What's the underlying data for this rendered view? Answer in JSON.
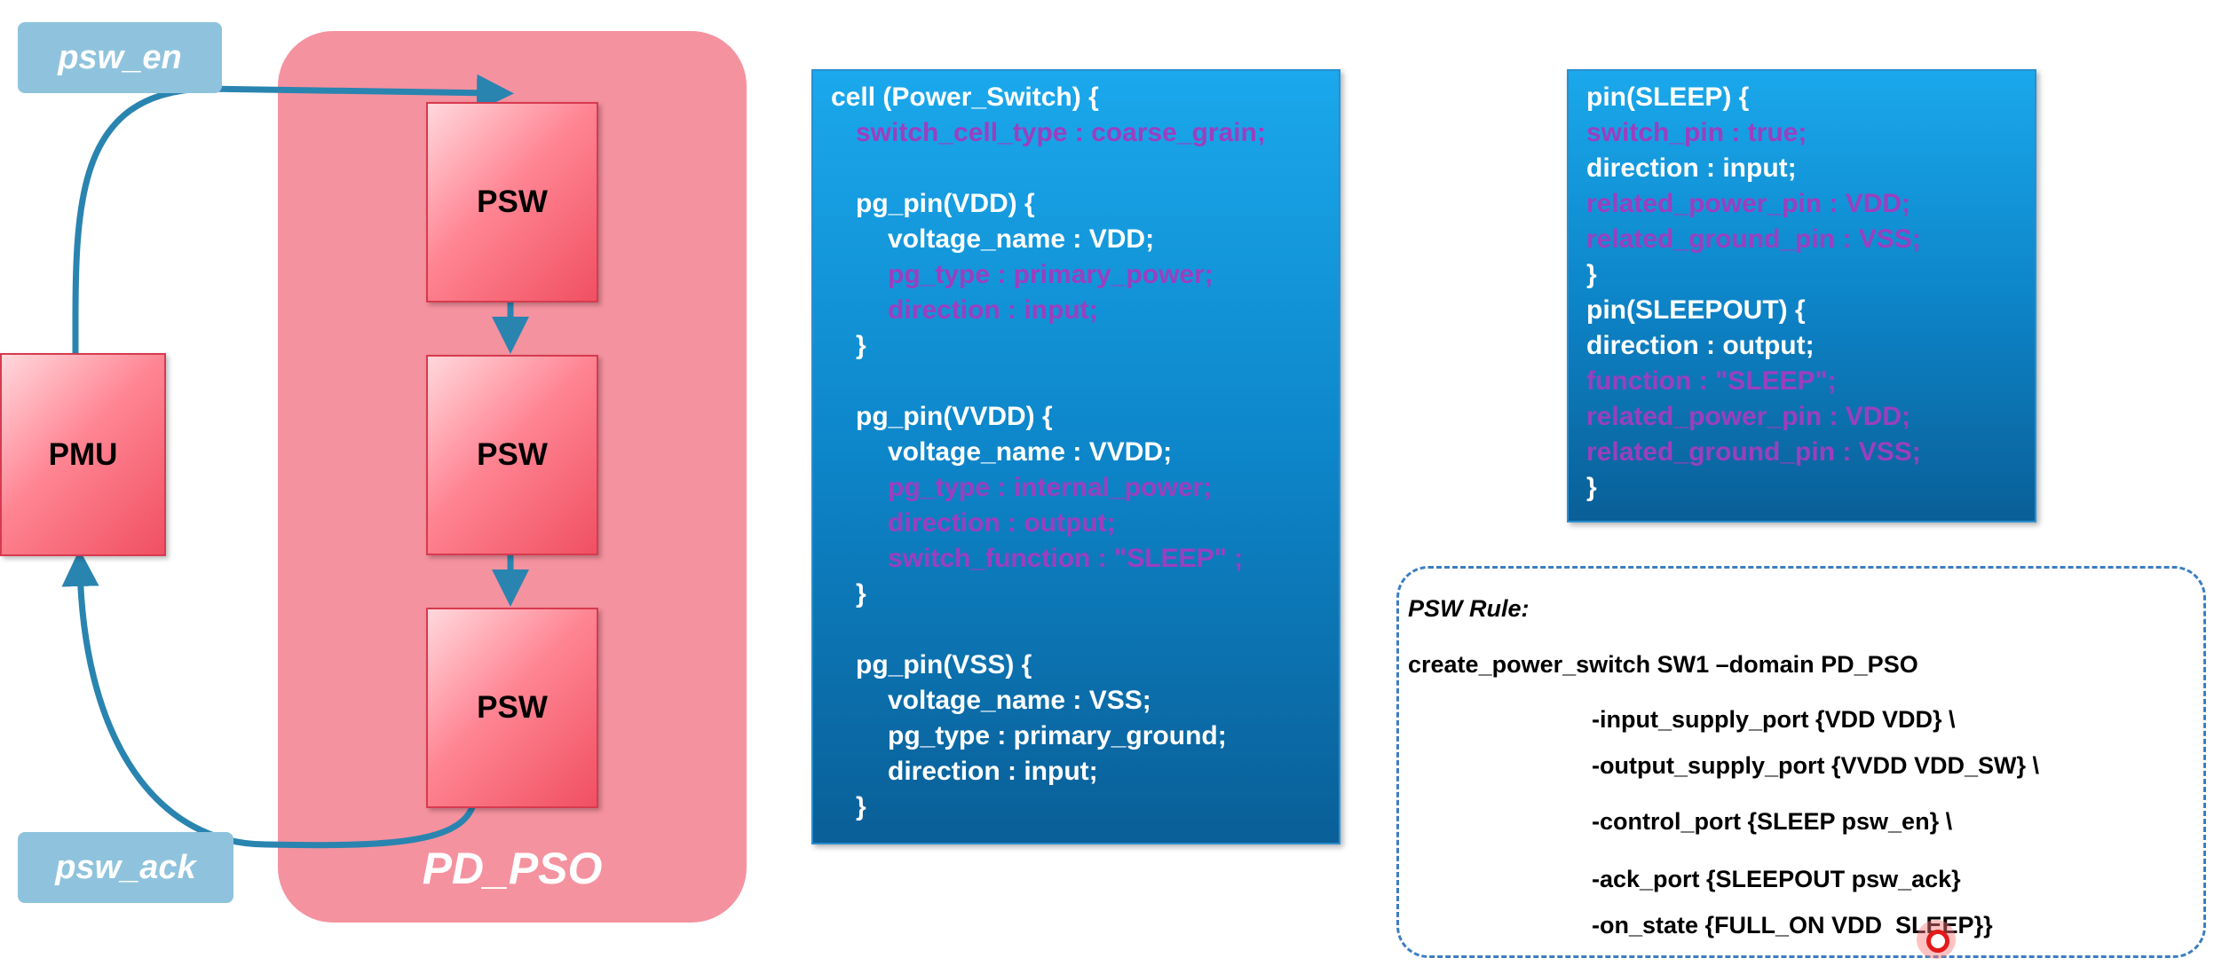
{
  "tags": {
    "en": "psw_en",
    "ack": "psw_ack"
  },
  "domain": {
    "label": "PD_PSO"
  },
  "blocks": {
    "pmu": "PMU",
    "psw1": "PSW",
    "psw2": "PSW",
    "psw3": "PSW"
  },
  "colors": {
    "domain_fill": "#f5929f",
    "tag_fill": "#8fc3dd",
    "arrow": "#2a84b0",
    "code_box": "#0d85c9",
    "code_purple": "#9b3fbf"
  },
  "cell_code": [
    {
      "text": "cell (Power_Switch) {",
      "indent": 0,
      "purple": false
    },
    {
      "text": "switch_cell_type : coarse_grain;",
      "indent": 1,
      "purple": true
    },
    {
      "text": "",
      "indent": 0,
      "purple": false
    },
    {
      "text": "pg_pin(VDD) {",
      "indent": 1,
      "purple": false
    },
    {
      "text": "voltage_name : VDD;",
      "indent": 2,
      "purple": false
    },
    {
      "text": "pg_type : primary_power;",
      "indent": 2,
      "purple": true
    },
    {
      "text": "direction : input;",
      "indent": 2,
      "purple": true
    },
    {
      "text": "}",
      "indent": 1,
      "purple": false
    },
    {
      "text": "",
      "indent": 0,
      "purple": false
    },
    {
      "text": "pg_pin(VVDD) {",
      "indent": 1,
      "purple": false
    },
    {
      "text": "voltage_name : VVDD;",
      "indent": 2,
      "purple": false
    },
    {
      "text": "pg_type : internal_power;",
      "indent": 2,
      "purple": true
    },
    {
      "text": "direction : output;",
      "indent": 2,
      "purple": true
    },
    {
      "text": "switch_function : \"SLEEP\" ;",
      "indent": 2,
      "purple": true
    },
    {
      "text": "}",
      "indent": 1,
      "purple": false
    },
    {
      "text": "",
      "indent": 0,
      "purple": false
    },
    {
      "text": "pg_pin(VSS) {",
      "indent": 1,
      "purple": false
    },
    {
      "text": "voltage_name : VSS;",
      "indent": 2,
      "purple": false
    },
    {
      "text": "pg_type : primary_ground;",
      "indent": 2,
      "purple": false
    },
    {
      "text": "direction : input;",
      "indent": 2,
      "purple": false
    },
    {
      "text": "}",
      "indent": 1,
      "purple": false
    }
  ],
  "pin_code": [
    {
      "text": "pin(SLEEP) {",
      "purple": false
    },
    {
      "text": "switch_pin : true;",
      "purple": true
    },
    {
      "text": "direction : input;",
      "purple": false
    },
    {
      "text": "related_power_pin : VDD;",
      "purple": true
    },
    {
      "text": "related_ground_pin : VSS;",
      "purple": true
    },
    {
      "text": "}",
      "purple": false
    },
    {
      "text": "pin(SLEEPOUT) {",
      "purple": false
    },
    {
      "text": "direction : output;",
      "purple": false
    },
    {
      "text": "function : \"SLEEP\";",
      "purple": true
    },
    {
      "text": "related_power_pin : VDD;",
      "purple": true
    },
    {
      "text": "related_ground_pin : VSS;",
      "purple": true
    },
    {
      "text": "}",
      "purple": false
    }
  ],
  "rule": {
    "title": "PSW Rule:",
    "command": "create_power_switch SW1 –domain PD_PSO",
    "options": [
      "-input_supply_port {VDD VDD} \\",
      "-output_supply_port {VVDD VDD_SW} \\",
      "-control_port {SLEEP psw_en} \\",
      "-ack_port {SLEEPOUT psw_ack}",
      "-on_state {FULL_ON VDD  SLEEP}}"
    ]
  }
}
